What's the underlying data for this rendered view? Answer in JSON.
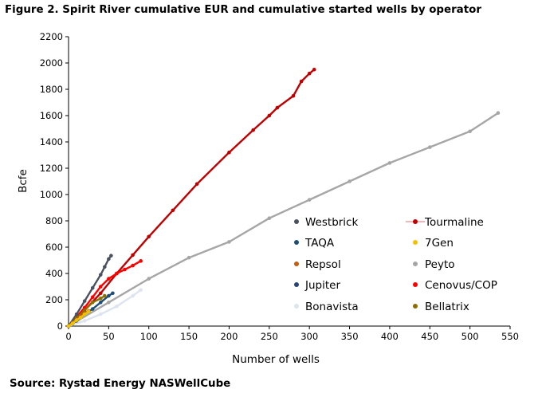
{
  "title": "Figure 2. Spirit River cumulative EUR and cumulative started wells by operator",
  "source": "Source: Rystad Energy NASWellCube",
  "chart_data": {
    "type": "scatter",
    "xlabel": "Number of wells",
    "ylabel": "Bcfe",
    "xlim": [
      0,
      550
    ],
    "ylim": [
      0,
      2200
    ],
    "xticks": [
      0,
      50,
      100,
      150,
      200,
      250,
      300,
      350,
      400,
      450,
      500,
      550
    ],
    "yticks": [
      0,
      200,
      400,
      600,
      800,
      1000,
      1200,
      1400,
      1600,
      1800,
      2000,
      2200
    ],
    "legend_position": "right",
    "series": [
      {
        "name": "Westbrick",
        "color": "#4a5160",
        "x": [
          0,
          10,
          20,
          30,
          40,
          45,
          50,
          53
        ],
        "y": [
          0,
          90,
          190,
          290,
          390,
          450,
          510,
          535
        ]
      },
      {
        "name": "Tourmaline",
        "color": "#c00000",
        "x": [
          0,
          20,
          40,
          60,
          80,
          100,
          130,
          160,
          200,
          230,
          250,
          260,
          280,
          290,
          300,
          306
        ],
        "y": [
          0,
          120,
          250,
          400,
          540,
          680,
          880,
          1080,
          1320,
          1490,
          1600,
          1660,
          1750,
          1860,
          1920,
          1950
        ]
      },
      {
        "name": "TAQA",
        "color": "#1f4e79",
        "x": [
          0,
          10,
          20,
          30,
          40,
          50,
          55
        ],
        "y": [
          0,
          40,
          90,
          130,
          180,
          230,
          250
        ]
      },
      {
        "name": "7Gen",
        "color": "#f2c200",
        "x": [
          0,
          5,
          10,
          15,
          20,
          25
        ],
        "y": [
          0,
          20,
          45,
          65,
          90,
          110
        ]
      },
      {
        "name": "Repsol",
        "color": "#c55a11",
        "x": [
          0,
          5,
          10,
          15,
          20,
          25
        ],
        "y": [
          0,
          25,
          50,
          75,
          95,
          115
        ]
      },
      {
        "name": "Peyto",
        "color": "#a6a6a6",
        "x": [
          0,
          50,
          100,
          150,
          200,
          250,
          300,
          350,
          400,
          450,
          500,
          535
        ],
        "y": [
          0,
          180,
          360,
          520,
          640,
          820,
          960,
          1100,
          1240,
          1360,
          1480,
          1620
        ]
      },
      {
        "name": "Jupiter",
        "color": "#264478",
        "x": [
          0,
          5,
          10,
          15,
          20,
          25
        ],
        "y": [
          0,
          20,
          45,
          70,
          90,
          110
        ]
      },
      {
        "name": "Cenovus/COP",
        "color": "#ff0000",
        "x": [
          0,
          10,
          20,
          30,
          40,
          50,
          60,
          70,
          80,
          90
        ],
        "y": [
          0,
          70,
          140,
          220,
          300,
          360,
          400,
          430,
          460,
          495
        ]
      },
      {
        "name": "Bonavista",
        "color": "#dde4ef",
        "x": [
          0,
          20,
          40,
          60,
          80,
          90
        ],
        "y": [
          0,
          40,
          90,
          150,
          230,
          275
        ]
      },
      {
        "name": "Bellatrix",
        "color": "#8c6d00",
        "x": [
          0,
          10,
          20,
          30,
          40,
          45
        ],
        "y": [
          0,
          60,
          120,
          180,
          210,
          230
        ]
      }
    ]
  }
}
